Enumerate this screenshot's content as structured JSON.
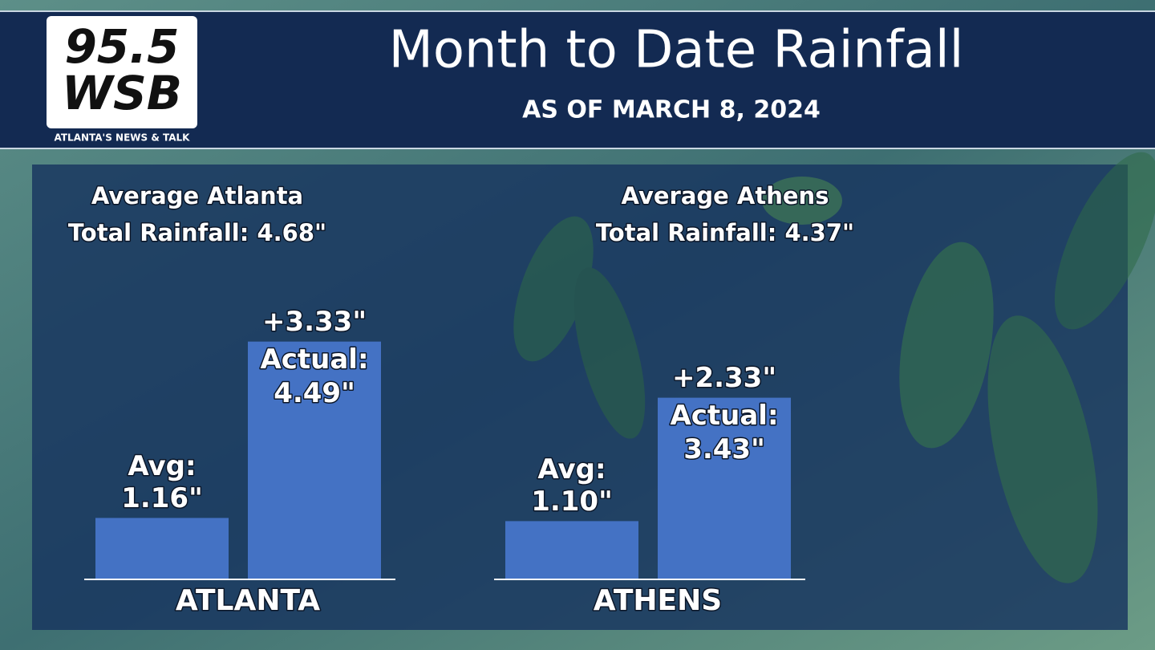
{
  "logo": {
    "line1": "95.5",
    "line2": "WSB",
    "tagline": "ATLANTA'S NEWS & TALK"
  },
  "title": "Month to Date Rainfall",
  "subtitle": "AS OF MARCH 8, 2024",
  "chart_data": [
    {
      "type": "bar",
      "title": "Average Atlanta",
      "subtitle": "Total Rainfall: 4.68\"",
      "xlabel": "ATLANTA",
      "categories": [
        "Avg:",
        "Actual:"
      ],
      "values": [
        1.16,
        4.49
      ],
      "value_labels": [
        "1.16\"",
        "4.49\""
      ],
      "annotation": "+3.33\"",
      "color": "#4472c4",
      "ylim": [
        0,
        5
      ]
    },
    {
      "type": "bar",
      "title": "Average Athens",
      "subtitle": "Total Rainfall: 4.37\"",
      "xlabel": "ATHENS",
      "categories": [
        "Avg:",
        "Actual:"
      ],
      "values": [
        1.1,
        3.43
      ],
      "value_labels": [
        "1.10\"",
        "3.43\""
      ],
      "annotation": "+2.33\"",
      "color": "#4472c4",
      "ylim": [
        0,
        5
      ]
    }
  ]
}
